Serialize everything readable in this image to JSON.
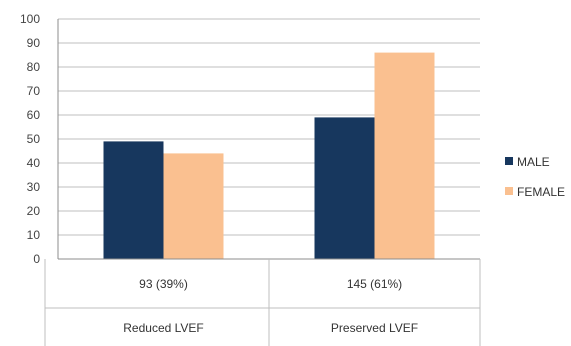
{
  "chart_data": {
    "type": "bar",
    "categories": [
      "Reduced LVEF",
      "Preserved LVEF"
    ],
    "category_counts": [
      "93 (39%)",
      "145 (61%)"
    ],
    "series": [
      {
        "name": "MALE",
        "values": [
          49,
          59
        ],
        "color": "#17375e"
      },
      {
        "name": "FEMALE",
        "values": [
          44,
          86
        ],
        "color": "#fac090"
      }
    ],
    "ylim": [
      0,
      100
    ],
    "yticks": [
      0,
      10,
      20,
      30,
      40,
      50,
      60,
      70,
      80,
      90,
      100
    ],
    "grid": true,
    "legend_position": "right",
    "title": "",
    "xlabel": "",
    "ylabel": ""
  }
}
